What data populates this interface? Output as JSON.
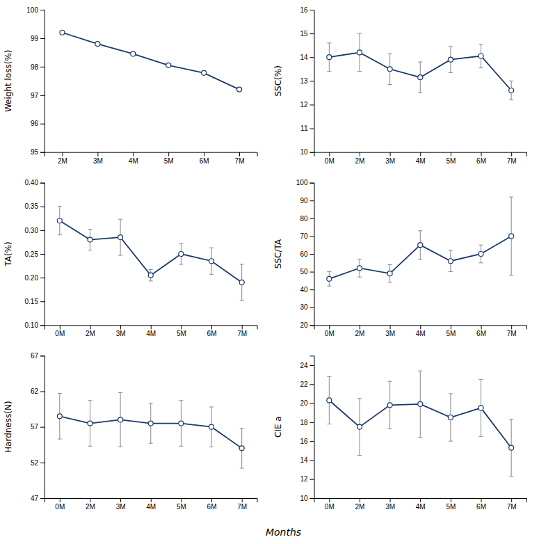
{
  "chart_data": [
    {
      "type": "line",
      "ylabel": "Weight loss(%)",
      "categories": [
        "2M",
        "3M",
        "4M",
        "5M",
        "6M",
        "7M"
      ],
      "values": [
        99.2,
        98.8,
        98.45,
        98.05,
        97.78,
        97.2
      ],
      "errors": [
        0.04,
        0.06,
        0.06,
        0.04,
        0.06,
        0.07
      ],
      "ylim": [
        95,
        100
      ],
      "yticks": [
        95,
        96,
        97,
        98,
        99,
        100
      ],
      "color": "#1a3a6b",
      "marker": "circle"
    },
    {
      "type": "line",
      "ylabel": "SSC(%)",
      "categories": [
        "0M",
        "2M",
        "3M",
        "4M",
        "5M",
        "6M",
        "7M"
      ],
      "values": [
        14.0,
        14.2,
        13.5,
        13.15,
        13.9,
        14.05,
        12.6
      ],
      "errors": [
        0.6,
        0.8,
        0.65,
        0.65,
        0.55,
        0.5,
        0.4
      ],
      "ylim": [
        10,
        16
      ],
      "yticks": [
        10,
        11,
        12,
        13,
        14,
        15,
        16
      ],
      "color": "#1a3a6b",
      "marker": "circle"
    },
    {
      "type": "line",
      "ylabel": "TA(%)",
      "categories": [
        "0M",
        "2M",
        "3M",
        "4M",
        "5M",
        "6M",
        "7M"
      ],
      "values": [
        0.32,
        0.28,
        0.285,
        0.205,
        0.25,
        0.235,
        0.19
      ],
      "errors": [
        0.03,
        0.022,
        0.038,
        0.012,
        0.022,
        0.028,
        0.038
      ],
      "ylim": [
        0.1,
        0.4
      ],
      "yticks": [
        {
          "value": 0.1,
          "label": "0.10"
        },
        0.15,
        {
          "value": 0.2,
          "label": "0.20"
        },
        0.25,
        {
          "value": 0.3,
          "label": "0.30"
        },
        0.35,
        {
          "value": 0.4,
          "label": "0.40"
        }
      ],
      "color": "#1a3a6b",
      "marker": "circle"
    },
    {
      "type": "line",
      "ylabel": "SSC/TA",
      "categories": [
        "0M",
        "2M",
        "3M",
        "4M",
        "5M",
        "6M",
        "7M"
      ],
      "values": [
        46,
        52,
        49,
        65,
        56,
        60,
        70
      ],
      "errors": [
        4,
        5,
        5,
        8,
        6,
        5,
        22
      ],
      "ylim": [
        20,
        100
      ],
      "yticks": [
        20,
        30,
        40,
        50,
        60,
        70,
        80,
        90,
        100
      ],
      "color": "#1a3a6b",
      "marker": "circle"
    },
    {
      "type": "line",
      "ylabel": "Hardness(N)",
      "categories": [
        "0M",
        "2M",
        "3M",
        "4M",
        "5M",
        "6M",
        "7M"
      ],
      "values": [
        58.5,
        57.5,
        58.0,
        57.5,
        57.5,
        57.0,
        54.0
      ],
      "errors": [
        3.2,
        3.2,
        3.8,
        2.8,
        3.2,
        2.8,
        2.8
      ],
      "ylim": [
        47,
        67
      ],
      "yticks": [
        47,
        52,
        57,
        62,
        67
      ],
      "color": "#1a3a6b",
      "marker": "circle"
    },
    {
      "type": "line",
      "ylabel": "CIE a",
      "categories": [
        "0M",
        "2M",
        "3M",
        "4M",
        "5M",
        "6M",
        "7M"
      ],
      "values": [
        20.3,
        17.5,
        19.8,
        19.9,
        18.5,
        19.5,
        15.3
      ],
      "errors": [
        2.5,
        3.0,
        2.5,
        3.5,
        2.5,
        3.0,
        3.0
      ],
      "ylim": [
        10,
        25
      ],
      "yticks": [
        10,
        12,
        14,
        16,
        18,
        20,
        22,
        24
      ],
      "color": "#1a3a6b",
      "marker": "circle"
    }
  ],
  "xlabel": "Months"
}
